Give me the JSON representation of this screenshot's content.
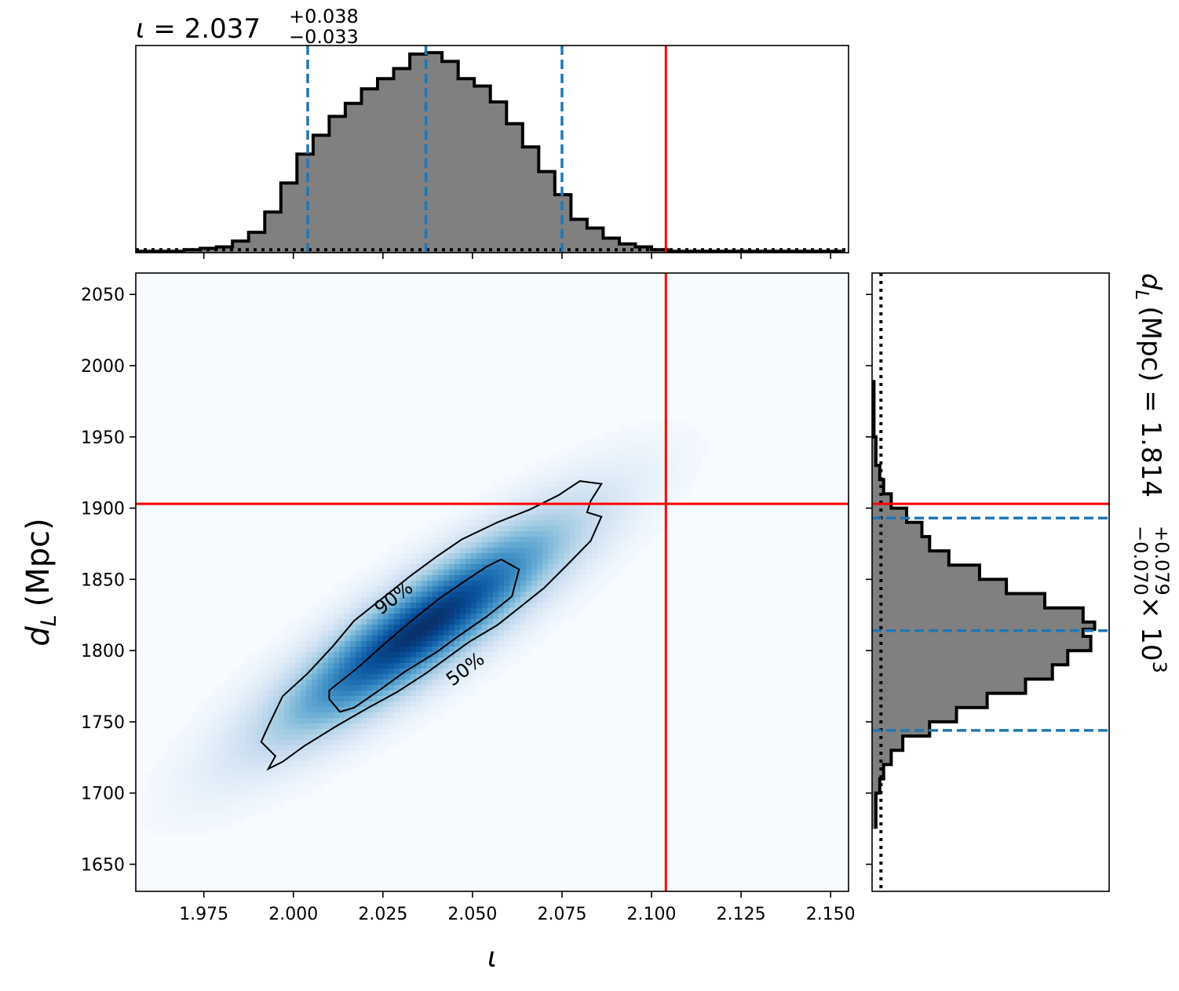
{
  "chart_data": [
    {
      "type": "heatmap",
      "panel": "joint",
      "xlabel": "ι",
      "ylabel_var": "d",
      "ylabel_sub": "L",
      "ylabel_unit": "(Mpc)",
      "xlim": [
        1.956,
        2.155
      ],
      "ylim": [
        1631,
        2065
      ],
      "x_ticks": [
        1.975,
        2.0,
        2.025,
        2.05,
        2.075,
        2.1,
        2.125,
        2.15
      ],
      "x_tick_labels": [
        "1.975",
        "2.000",
        "2.025",
        "2.050",
        "2.075",
        "2.100",
        "2.125",
        "2.150"
      ],
      "y_ticks": [
        1650,
        1700,
        1750,
        1800,
        1850,
        1900,
        1950,
        2000,
        2050
      ],
      "y_tick_labels": [
        "1650",
        "1700",
        "1750",
        "1800",
        "1850",
        "1900",
        "1950",
        "2000",
        "2050"
      ],
      "colormap": "Blues",
      "density_peak": {
        "x": 2.036,
        "y": 1816
      },
      "contour_levels": [
        {
          "label": "50%",
          "label_at": [
            2.048,
            1787
          ],
          "points": [
            [
              2.01,
              1772
            ],
            [
              2.018,
              1788
            ],
            [
              2.026,
              1806
            ],
            [
              2.034,
              1823
            ],
            [
              2.041,
              1837
            ],
            [
              2.048,
              1849
            ],
            [
              2.054,
              1859
            ],
            [
              2.058,
              1864
            ],
            [
              2.063,
              1857
            ],
            [
              2.061,
              1838
            ],
            [
              2.054,
              1824
            ],
            [
              2.046,
              1810
            ],
            [
              2.04,
              1799
            ],
            [
              2.031,
              1785
            ],
            [
              2.025,
              1774
            ],
            [
              2.017,
              1760
            ],
            [
              2.013,
              1757
            ],
            [
              2.01,
              1766
            ]
          ]
        },
        {
          "label": "90%",
          "label_at": [
            2.028,
            1837
          ],
          "points": [
            [
              1.993,
              1747
            ],
            [
              1.997,
              1768
            ],
            [
              2.004,
              1784
            ],
            [
              2.011,
              1803
            ],
            [
              2.017,
              1821
            ],
            [
              2.025,
              1837
            ],
            [
              2.033,
              1853
            ],
            [
              2.04,
              1866
            ],
            [
              2.047,
              1878
            ],
            [
              2.057,
              1890
            ],
            [
              2.066,
              1899
            ],
            [
              2.074,
              1909
            ],
            [
              2.08,
              1919
            ],
            [
              2.086,
              1917
            ],
            [
              2.083,
              1905
            ],
            [
              2.082,
              1897
            ],
            [
              2.086,
              1894
            ],
            [
              2.083,
              1877
            ],
            [
              2.076,
              1859
            ],
            [
              2.07,
              1844
            ],
            [
              2.064,
              1832
            ],
            [
              2.057,
              1818
            ],
            [
              2.049,
              1806
            ],
            [
              2.043,
              1795
            ],
            [
              2.037,
              1784
            ],
            [
              2.029,
              1771
            ],
            [
              2.021,
              1760
            ],
            [
              2.012,
              1747
            ],
            [
              2.003,
              1733
            ],
            [
              1.997,
              1722
            ],
            [
              1.993,
              1717
            ],
            [
              1.995,
              1726
            ],
            [
              1.991,
              1736
            ]
          ]
        }
      ],
      "truth": {
        "x": 2.104,
        "y": 1903
      }
    },
    {
      "type": "bar",
      "panel": "top-marginal",
      "title_var": "ι",
      "title_value": "2.037",
      "title_plus": "+0.038",
      "title_minus": "−0.033",
      "xlim": [
        1.956,
        2.155
      ],
      "bin_edges_start": 1.956,
      "bin_width": 0.0045,
      "counts": [
        1,
        1,
        1,
        2,
        3,
        4,
        8,
        14,
        28,
        48,
        68,
        81,
        94,
        103,
        113,
        120,
        127,
        137,
        138,
        132,
        120,
        115,
        104,
        89,
        73,
        56,
        40,
        23,
        17,
        10,
        6,
        4,
        2,
        1,
        1,
        1,
        1,
        1,
        1,
        1,
        1,
        1,
        1,
        1
      ],
      "quantiles": {
        "lower": 2.004,
        "median": 2.037,
        "upper": 2.075
      },
      "prior_level": 2,
      "truth": 2.104
    },
    {
      "type": "bar",
      "panel": "right-marginal",
      "title_var": "d",
      "title_sub": "L",
      "title_unit": "(Mpc)",
      "title_value": "1.814",
      "title_plus": "+0.079",
      "title_minus": "−0.070",
      "title_scale": "× 10",
      "title_exp": "3",
      "ylim": [
        1631,
        2065
      ],
      "bins": [
        [
          1675,
          1685,
          1
        ],
        [
          1685,
          1700,
          1
        ],
        [
          1700,
          1710,
          2
        ],
        [
          1710,
          1720,
          3
        ],
        [
          1720,
          1730,
          5
        ],
        [
          1730,
          1740,
          8
        ],
        [
          1740,
          1750,
          15
        ],
        [
          1750,
          1760,
          22
        ],
        [
          1760,
          1770,
          30
        ],
        [
          1770,
          1780,
          40
        ],
        [
          1780,
          1790,
          47
        ],
        [
          1790,
          1800,
          51
        ],
        [
          1800,
          1810,
          57
        ],
        [
          1810,
          1815,
          55
        ],
        [
          1815,
          1820,
          58
        ],
        [
          1820,
          1830,
          55
        ],
        [
          1830,
          1840,
          45
        ],
        [
          1840,
          1850,
          35
        ],
        [
          1850,
          1860,
          28
        ],
        [
          1860,
          1870,
          20
        ],
        [
          1870,
          1880,
          15
        ],
        [
          1880,
          1890,
          13
        ],
        [
          1890,
          1900,
          9
        ],
        [
          1900,
          1910,
          5
        ],
        [
          1910,
          1920,
          3
        ],
        [
          1920,
          1930,
          2
        ],
        [
          1930,
          1950,
          1
        ],
        [
          1950,
          1990,
          0.5
        ]
      ],
      "quantiles": {
        "lower": 1744,
        "median": 1814,
        "upper": 1893
      },
      "prior_level": 1.5,
      "truth": 1903
    }
  ],
  "colors": {
    "hist_fill": "#808080",
    "hist_edge": "#000000",
    "quantile_line": "#1f77b4",
    "truth_line": "#ff0000",
    "cmap_low": "#f7fbff",
    "cmap_high": "#08306b"
  }
}
